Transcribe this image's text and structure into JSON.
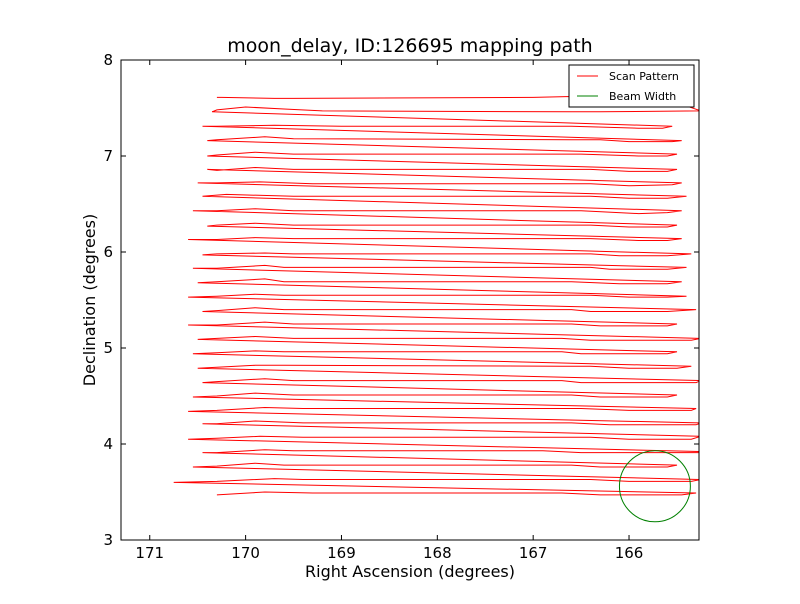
{
  "chart_data": {
    "type": "line",
    "title": "moon_delay, ID:126695 mapping path",
    "xlabel": "Right Ascension (degrees)",
    "ylabel": "Declination (degrees)",
    "xlim": [
      171.3,
      165.27
    ],
    "ylim": [
      3,
      8
    ],
    "x_inverted": true,
    "xticks": [
      171,
      170,
      169,
      168,
      167,
      166
    ],
    "yticks": [
      3,
      4,
      5,
      6,
      7,
      8
    ],
    "grid": false,
    "legend_position": "top-right",
    "colors": {
      "scan": "#ff0000",
      "beam": "#008000",
      "axes": "#000000"
    },
    "series": [
      {
        "name": "Scan Pattern",
        "x": [
          170.3,
          170.25,
          169.7,
          169.5,
          167.0,
          166.6,
          165.9,
          165.75,
          165.6,
          165.25,
          166.3,
          166.6,
          169.2,
          169.6,
          170.0,
          170.3,
          170.35,
          165.55,
          165.65,
          165.9,
          166.6,
          169.0,
          169.7,
          170.3,
          170.45,
          165.45,
          165.55,
          166.0,
          166.3,
          166.6,
          169.5,
          169.8,
          170.3,
          170.4,
          165.5,
          165.6,
          165.9,
          166.5,
          169.5,
          169.9,
          170.3,
          170.4,
          165.5,
          165.6,
          166.0,
          166.4,
          169.5,
          169.9,
          170.3,
          170.4,
          165.45,
          165.55,
          166.0,
          166.4,
          169.3,
          169.85,
          170.3,
          170.5,
          165.4,
          165.6,
          166.0,
          166.4,
          166.6,
          169.5,
          170.2,
          170.45,
          165.45,
          165.6,
          165.9,
          166.5,
          169.5,
          169.9,
          170.3,
          170.55,
          165.5,
          165.6,
          166.0,
          166.4,
          169.5,
          169.9,
          170.3,
          170.4,
          165.45,
          165.6,
          165.9,
          166.4,
          166.6,
          169.5,
          169.9,
          170.3,
          170.6,
          165.35,
          165.6,
          166.1,
          166.4,
          169.5,
          169.8,
          170.3,
          170.45,
          165.4,
          165.6,
          166.2,
          166.4,
          169.6,
          169.8,
          170.3,
          170.55,
          165.45,
          165.6,
          166.1,
          166.6,
          169.6,
          169.8,
          170.3,
          170.5,
          165.4,
          165.6,
          166.0,
          166.4,
          166.6,
          169.6,
          169.9,
          170.3,
          170.6,
          165.3,
          165.6,
          166.4,
          166.6,
          169.6,
          169.9,
          170.3,
          170.45,
          165.5,
          165.6,
          166.3,
          166.6,
          169.5,
          169.8,
          170.3,
          170.6,
          165.25,
          165.35,
          166.4,
          166.7,
          169.5,
          169.9,
          170.3,
          170.5,
          165.5,
          165.6,
          166.5,
          166.7,
          169.6,
          169.9,
          170.3,
          170.55,
          165.35,
          165.5,
          166.0,
          166.4,
          166.7,
          169.6,
          169.9,
          170.3,
          170.5,
          165.25,
          165.3,
          166.5,
          166.7,
          169.5,
          169.8,
          170.3,
          170.45,
          165.5,
          165.6,
          166.3,
          166.6,
          169.5,
          169.9,
          170.3,
          170.55,
          165.3,
          165.35,
          166.0,
          166.5,
          166.7,
          169.4,
          169.8,
          170.3,
          170.6,
          165.25,
          165.3,
          166.2,
          166.6,
          169.4,
          169.9,
          170.3,
          170.45,
          165.25,
          165.35,
          166.0,
          166.4,
          166.6,
          169.4,
          169.85,
          170.3,
          170.6,
          165.2,
          165.25,
          166.5,
          166.9,
          169.5,
          169.8,
          170.3,
          170.45,
          165.5,
          165.6,
          166.3,
          166.6,
          169.6,
          169.9,
          170.3,
          170.55,
          165.25,
          165.35,
          166.0,
          166.4,
          166.7,
          169.4,
          169.7,
          170.3,
          170.75,
          165.3,
          165.45,
          166.3,
          166.7,
          169.3,
          169.8,
          170.3
        ],
        "y": [
          7.61,
          7.61,
          7.6,
          7.6,
          7.61,
          7.62,
          7.6,
          7.6,
          7.59,
          7.47,
          7.46,
          7.46,
          7.47,
          7.49,
          7.51,
          7.48,
          7.46,
          7.31,
          7.29,
          7.29,
          7.31,
          7.31,
          7.32,
          7.31,
          7.31,
          7.16,
          7.15,
          7.15,
          7.17,
          7.17,
          7.18,
          7.2,
          7.17,
          7.16,
          7.02,
          7.0,
          7.0,
          7.02,
          7.02,
          7.04,
          7.01,
          7.0,
          6.86,
          6.84,
          6.84,
          6.86,
          6.86,
          6.88,
          6.85,
          6.86,
          6.72,
          6.7,
          6.69,
          6.71,
          6.71,
          6.73,
          6.72,
          6.72,
          6.58,
          6.56,
          6.56,
          6.58,
          6.58,
          6.58,
          6.6,
          6.58,
          6.43,
          6.41,
          6.4,
          6.43,
          6.43,
          6.45,
          6.43,
          6.43,
          6.28,
          6.26,
          6.26,
          6.28,
          6.28,
          6.3,
          6.28,
          6.27,
          6.14,
          6.12,
          6.12,
          6.14,
          6.14,
          6.14,
          6.15,
          6.13,
          6.13,
          5.98,
          5.96,
          5.96,
          5.98,
          5.98,
          5.99,
          5.98,
          5.97,
          5.84,
          5.82,
          5.82,
          5.84,
          5.84,
          5.86,
          5.83,
          5.83,
          5.69,
          5.67,
          5.67,
          5.69,
          5.69,
          5.72,
          5.69,
          5.68,
          5.54,
          5.53,
          5.53,
          5.55,
          5.55,
          5.55,
          5.56,
          5.54,
          5.53,
          5.4,
          5.38,
          5.38,
          5.4,
          5.4,
          5.42,
          5.39,
          5.38,
          5.25,
          5.23,
          5.23,
          5.25,
          5.25,
          5.27,
          5.24,
          5.24,
          5.1,
          5.08,
          5.08,
          5.1,
          5.1,
          5.12,
          5.1,
          5.09,
          4.96,
          4.94,
          4.94,
          4.96,
          4.96,
          4.97,
          4.95,
          4.94,
          4.81,
          4.79,
          4.79,
          4.81,
          4.81,
          4.82,
          4.82,
          4.8,
          4.79,
          4.66,
          4.64,
          4.64,
          4.66,
          4.66,
          4.68,
          4.65,
          4.64,
          4.51,
          4.49,
          4.49,
          4.51,
          4.51,
          4.53,
          4.5,
          4.49,
          4.37,
          4.35,
          4.35,
          4.37,
          4.37,
          4.37,
          4.38,
          4.35,
          4.34,
          4.22,
          4.2,
          4.2,
          4.22,
          4.22,
          4.24,
          4.21,
          4.21,
          4.08,
          4.05,
          4.05,
          4.07,
          4.07,
          4.07,
          4.08,
          4.06,
          4.05,
          3.92,
          3.91,
          3.91,
          3.93,
          3.93,
          3.94,
          3.91,
          3.91,
          3.78,
          3.76,
          3.76,
          3.78,
          3.78,
          3.8,
          3.77,
          3.76,
          3.63,
          3.61,
          3.61,
          3.63,
          3.63,
          3.63,
          3.64,
          3.61,
          3.6,
          3.49,
          3.47,
          3.47,
          3.49,
          3.49,
          3.5,
          3.47
        ]
      },
      {
        "name": "Beam Width",
        "shape": "circle",
        "center": [
          165.73,
          3.56
        ],
        "radius_deg": 0.37
      }
    ]
  }
}
